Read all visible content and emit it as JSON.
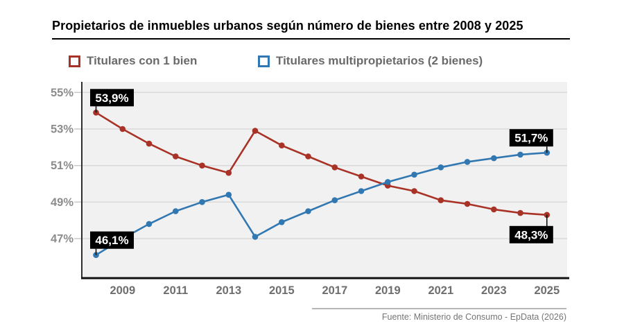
{
  "title": "Propietarios de inmuebles urbanos según número de bienes entre 2008 y 2025",
  "legend": [
    {
      "label": "Titulares con 1 bien",
      "color": "#a93226"
    },
    {
      "label": "Titulares multipropietarios (2 bienes)",
      "color": "#3178b2"
    }
  ],
  "footer": {
    "source": "Fuente: Ministerio de Consumo - EpData (2026)"
  },
  "colors": {
    "accent_red": "#a93226",
    "accent_blue": "#3178b2",
    "plot_bg": "#f1f1f1",
    "grid": "#d9d9d9",
    "tick": "#c9c9c9",
    "y_axis": "#2e2e2e",
    "x_axis": "#111111",
    "y_label": "#8c8c8c",
    "x_label": "#6e6e6e",
    "label_bg": "#000000",
    "label_fg": "#ffffff",
    "connector": "#111111"
  },
  "chart_data": {
    "type": "line",
    "title": "Propietarios de inmuebles urbanos según número de bienes entre 2008 y 2025",
    "x": [
      2008,
      2009,
      2010,
      2011,
      2012,
      2013,
      2014,
      2015,
      2016,
      2017,
      2018,
      2019,
      2020,
      2021,
      2022,
      2023,
      2024,
      2025
    ],
    "x_tick_labels": [
      "2009",
      "2011",
      "2013",
      "2015",
      "2017",
      "2019",
      "2021",
      "2023",
      "2025"
    ],
    "y_ticks": [
      55,
      53,
      51,
      49,
      47
    ],
    "y_unit": "%",
    "ylim": [
      44.9,
      55.6
    ],
    "grid": true,
    "legend_position": "top",
    "series": [
      {
        "name": "Titulares con 1 bien",
        "color": "#a93226",
        "values": [
          53.9,
          53.0,
          52.2,
          51.5,
          51.0,
          50.6,
          52.9,
          52.1,
          51.5,
          50.9,
          50.4,
          49.9,
          49.6,
          49.1,
          48.9,
          48.6,
          48.4,
          48.3
        ]
      },
      {
        "name": "Titulares multipropietarios (2 bienes)",
        "color": "#3178b2",
        "values": [
          46.1,
          47.0,
          47.8,
          48.5,
          49.0,
          49.4,
          47.1,
          47.9,
          48.5,
          49.1,
          49.6,
          50.1,
          50.5,
          50.9,
          51.2,
          51.4,
          51.6,
          51.7
        ]
      }
    ],
    "annotations": [
      {
        "series": 0,
        "year": 2008,
        "text": "53,9%",
        "position": "above",
        "align": "left"
      },
      {
        "series": 1,
        "year": 2008,
        "text": "46,1%",
        "position": "above",
        "align": "left"
      },
      {
        "series": 1,
        "year": 2025,
        "text": "51,7%",
        "position": "above",
        "align": "right"
      },
      {
        "series": 0,
        "year": 2025,
        "text": "48,3%",
        "position": "below",
        "align": "right"
      }
    ]
  }
}
